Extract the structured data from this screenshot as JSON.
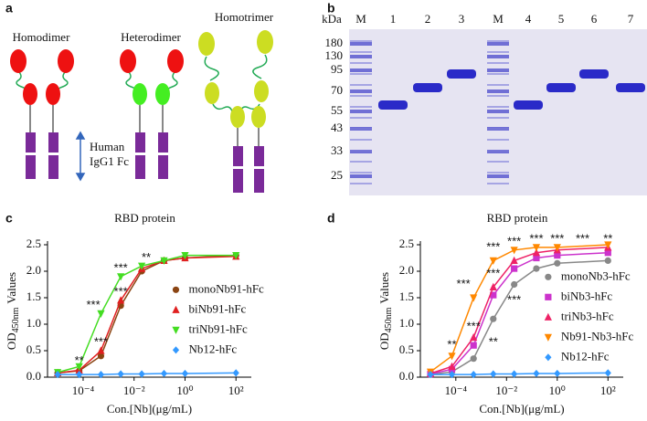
{
  "panel_labels": [
    "a",
    "b",
    "c",
    "d"
  ],
  "panel_a": {
    "constructs": [
      "Homodimer",
      "Heterodimer",
      "Homotrimer"
    ],
    "fc_label": [
      "Human",
      "IgG1 Fc"
    ]
  },
  "panel_b": {
    "unit": "kDa",
    "lanes": [
      "M",
      "1",
      "2",
      "3",
      "M",
      "4",
      "5",
      "6",
      "7"
    ],
    "markers": [
      "180",
      "130",
      "95",
      "70",
      "55",
      "43",
      "33",
      "25"
    ]
  },
  "chart_data": [
    {
      "type": "line",
      "title": "RBD protein",
      "xlabel": "Con.[Nb](μg/mL)",
      "ylabel": "OD",
      "ylabel_subscript": "450nm",
      "ylabel_suffix": "Values",
      "xscale": "log",
      "xlim": [
        4e-06,
        400
      ],
      "ylim": [
        0,
        2.5
      ],
      "xticks": [
        {
          "value": 0.0001,
          "label": "10⁻⁴"
        },
        {
          "value": 0.01,
          "label": "10⁻²"
        },
        {
          "value": 1,
          "label": "10⁰"
        },
        {
          "value": 100,
          "label": "10²"
        }
      ],
      "yticks": [
        {
          "value": 0,
          "label": "0.0"
        },
        0.5,
        {
          "value": 1,
          "label": "1.0"
        },
        1.5,
        {
          "value": 2,
          "label": "2.0"
        },
        2.5
      ],
      "legend": "right",
      "x": [
        1e-05,
        7e-05,
        0.0005,
        0.003,
        0.02,
        0.15,
        1,
        100
      ],
      "series": [
        {
          "name": "monoNb91-hFc",
          "color": "#8b4513",
          "marker": "circle",
          "values": [
            0.08,
            0.12,
            0.4,
            1.35,
            2.0,
            2.2,
            2.25,
            2.3
          ]
        },
        {
          "name": "biNb91-hFc",
          "color": "#e02020",
          "marker": "triangle",
          "values": [
            0.08,
            0.13,
            0.5,
            1.45,
            2.05,
            2.2,
            2.25,
            2.28
          ]
        },
        {
          "name": "triNb91-hFc",
          "color": "#44dd22",
          "marker": "triangle-down",
          "values": [
            0.09,
            0.2,
            1.2,
            1.9,
            2.1,
            2.2,
            2.3,
            2.3
          ]
        },
        {
          "name": "Nb12-hFc",
          "color": "#3399ff",
          "marker": "diamond",
          "values": [
            0.05,
            0.05,
            0.05,
            0.06,
            0.06,
            0.07,
            0.07,
            0.08
          ]
        }
      ],
      "annotations": [
        {
          "text": "**",
          "x": 7e-05,
          "y": 0.3
        },
        {
          "text": "***",
          "x": 0.0005,
          "y": 0.65
        },
        {
          "text": "***",
          "x": 0.00025,
          "y": 1.35
        },
        {
          "text": "***",
          "x": 0.003,
          "y": 1.6
        },
        {
          "text": "***",
          "x": 0.003,
          "y": 2.05
        },
        {
          "text": "**",
          "x": 0.03,
          "y": 2.25
        }
      ]
    },
    {
      "type": "line",
      "title": "RBD protein",
      "xlabel": "Con.[Nb](μg/mL)",
      "ylabel": "OD",
      "ylabel_subscript": "450nm",
      "ylabel_suffix": "Values",
      "xscale": "log",
      "xlim": [
        4e-06,
        400
      ],
      "ylim": [
        0,
        2.5
      ],
      "xticks": [
        {
          "value": 0.0001,
          "label": "10⁻⁴"
        },
        {
          "value": 0.01,
          "label": "10⁻²"
        },
        {
          "value": 1,
          "label": "10⁰"
        },
        {
          "value": 100,
          "label": "10²"
        }
      ],
      "yticks": [
        {
          "value": 0,
          "label": "0.0"
        },
        0.5,
        {
          "value": 1,
          "label": "1.0"
        },
        1.5,
        {
          "value": 2,
          "label": "2.0"
        },
        2.5
      ],
      "legend": "right",
      "x": [
        1e-05,
        7e-05,
        0.0005,
        0.003,
        0.02,
        0.15,
        1,
        100
      ],
      "series": [
        {
          "name": "monoNb3-hFc",
          "color": "#888888",
          "marker": "circle",
          "values": [
            0.05,
            0.1,
            0.35,
            1.1,
            1.75,
            2.05,
            2.15,
            2.2
          ]
        },
        {
          "name": "biNb3-hFc",
          "color": "#cc33cc",
          "marker": "square",
          "values": [
            0.06,
            0.15,
            0.6,
            1.55,
            2.05,
            2.25,
            2.3,
            2.35
          ]
        },
        {
          "name": "triNb3-hFc",
          "color": "#ee2266",
          "marker": "triangle",
          "values": [
            0.07,
            0.2,
            0.75,
            1.7,
            2.2,
            2.35,
            2.4,
            2.45
          ]
        },
        {
          "name": "Nb91-Nb3-hFc",
          "color": "#ff8800",
          "marker": "triangle-down",
          "values": [
            0.1,
            0.4,
            1.5,
            2.2,
            2.4,
            2.45,
            2.45,
            2.5
          ]
        },
        {
          "name": "Nb12-hFc",
          "color": "#3399ff",
          "marker": "diamond",
          "values": [
            0.05,
            0.05,
            0.05,
            0.06,
            0.06,
            0.07,
            0.07,
            0.08
          ]
        }
      ],
      "annotations": [
        {
          "text": "**",
          "x": 7e-05,
          "y": 0.6
        },
        {
          "text": "***",
          "x": 0.0005,
          "y": 0.95
        },
        {
          "text": "**",
          "x": 0.003,
          "y": 0.65
        },
        {
          "text": "***",
          "x": 0.0002,
          "y": 1.75
        },
        {
          "text": "***",
          "x": 0.003,
          "y": 1.95
        },
        {
          "text": "***",
          "x": 0.02,
          "y": 1.45
        },
        {
          "text": "***",
          "x": 0.003,
          "y": 2.45
        },
        {
          "text": "***",
          "x": 0.02,
          "y": 2.55
        },
        {
          "text": "***",
          "x": 0.15,
          "y": 2.6
        },
        {
          "text": "***",
          "x": 1,
          "y": 2.6
        },
        {
          "text": "***",
          "x": 10,
          "y": 2.6
        },
        {
          "text": "**",
          "x": 100,
          "y": 2.6
        }
      ]
    }
  ]
}
